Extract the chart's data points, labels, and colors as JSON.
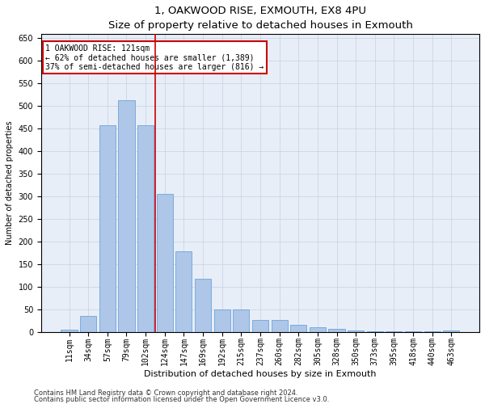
{
  "title": "1, OAKWOOD RISE, EXMOUTH, EX8 4PU",
  "subtitle": "Size of property relative to detached houses in Exmouth",
  "xlabel": "Distribution of detached houses by size in Exmouth",
  "ylabel": "Number of detached properties",
  "categories": [
    "11sqm",
    "34sqm",
    "57sqm",
    "79sqm",
    "102sqm",
    "124sqm",
    "147sqm",
    "169sqm",
    "192sqm",
    "215sqm",
    "237sqm",
    "260sqm",
    "282sqm",
    "305sqm",
    "328sqm",
    "350sqm",
    "373sqm",
    "395sqm",
    "418sqm",
    "440sqm",
    "463sqm"
  ],
  "values": [
    5,
    35,
    457,
    513,
    457,
    305,
    178,
    118,
    50,
    50,
    27,
    27,
    16,
    11,
    7,
    4,
    2,
    2,
    1,
    1,
    3
  ],
  "bar_color": "#aec6e8",
  "bar_edgecolor": "#5b9bd5",
  "vline_x": 4.5,
  "vline_color": "#cc0000",
  "annotation_text": "1 OAKWOOD RISE: 121sqm\n← 62% of detached houses are smaller (1,389)\n37% of semi-detached houses are larger (816) →",
  "annotation_box_color": "#cc0000",
  "ylim": [
    0,
    660
  ],
  "yticks": [
    0,
    50,
    100,
    150,
    200,
    250,
    300,
    350,
    400,
    450,
    500,
    550,
    600,
    650
  ],
  "footnote1": "Contains HM Land Registry data © Crown copyright and database right 2024.",
  "footnote2": "Contains public sector information licensed under the Open Government Licence v3.0.",
  "background_color": "#e8eef8",
  "plot_bg_color": "#ffffff",
  "title_fontsize": 9.5,
  "subtitle_fontsize": 8.5,
  "xlabel_fontsize": 8,
  "ylabel_fontsize": 7,
  "tick_fontsize": 7,
  "annot_fontsize": 7
}
